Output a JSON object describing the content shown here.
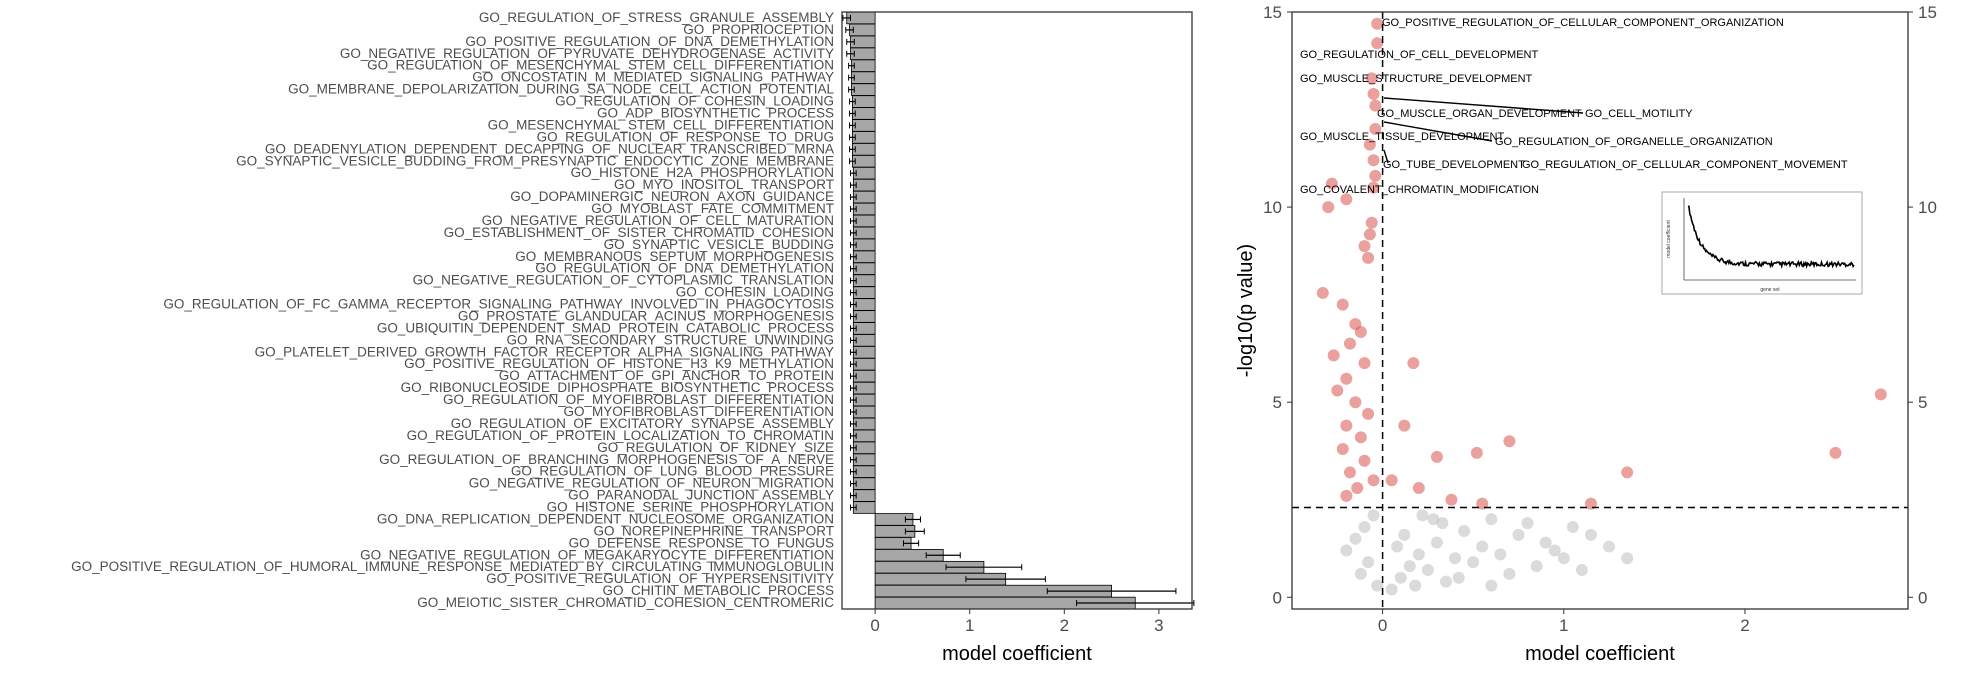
{
  "chart_data": [
    {
      "type": "bar",
      "orientation": "horizontal",
      "xlabel": "model coefficient",
      "ylabel": "",
      "xlim": [
        -0.35,
        3.35
      ],
      "xticks": [
        0,
        1,
        2,
        3
      ],
      "grid": false,
      "bar_color": "#a6a6a6",
      "categories": [
        "GO_REGULATION_OF_STRESS_GRANULE_ASSEMBLY",
        "GO_PROPRIOCEPTION",
        "GO_POSITIVE_REGULATION_OF_DNA_DEMETHYLATION",
        "GO_NEGATIVE_REGULATION_OF_PYRUVATE_DEHYDROGENASE_ACTIVITY",
        "GO_REGULATION_OF_MESENCHYMAL_STEM_CELL_DIFFERENTIATION",
        "GO_ONCOSTATIN_M_MEDIATED_SIGNALING_PATHWAY",
        "GO_MEMBRANE_DEPOLARIZATION_DURING_SA_NODE_CELL_ACTION_POTENTIAL",
        "GO_REGULATION_OF_COHESIN_LOADING",
        "GO_ADP_BIOSYNTHETIC_PROCESS",
        "GO_MESENCHYMAL_STEM_CELL_DIFFERENTIATION",
        "GO_REGULATION_OF_RESPONSE_TO_DRUG",
        "GO_DEADENYLATION_DEPENDENT_DECAPPING_OF_NUCLEAR_TRANSCRIBED_MRNA",
        "GO_SYNAPTIC_VESICLE_BUDDING_FROM_PRESYNAPTIC_ENDOCYTIC_ZONE_MEMBRANE",
        "GO_HISTONE_H2A_PHOSPHORYLATION",
        "GO_MYO_INOSITOL_TRANSPORT",
        "GO_DOPAMINERGIC_NEURON_AXON_GUIDANCE",
        "GO_MYOBLAST_FATE_COMMITMENT",
        "GO_NEGATIVE_REGULATION_OF_CELL_MATURATION",
        "GO_ESTABLISHMENT_OF_SISTER_CHROMATID_COHESION",
        "GO_SYNAPTIC_VESICLE_BUDDING",
        "GO_MEMBRANOUS_SEPTUM_MORPHOGENESIS",
        "GO_REGULATION_OF_DNA_DEMETHYLATION",
        "GO_NEGATIVE_REGULATION_OF_CYTOPLASMIC_TRANSLATION",
        "GO_COHESIN_LOADING",
        "GO_REGULATION_OF_FC_GAMMA_RECEPTOR_SIGNALING_PATHWAY_INVOLVED_IN_PHAGOCYTOSIS",
        "GO_PROSTATE_GLANDULAR_ACINUS_MORPHOGENESIS",
        "GO_UBIQUITIN_DEPENDENT_SMAD_PROTEIN_CATABOLIC_PROCESS",
        "GO_RNA_SECONDARY_STRUCTURE_UNWINDING",
        "GO_PLATELET_DERIVED_GROWTH_FACTOR_RECEPTOR_ALPHA_SIGNALING_PATHWAY",
        "GO_POSITIVE_REGULATION_OF_HISTONE_H3_K9_METHYLATION",
        "GO_ATTACHMENT_OF_GPI_ANCHOR_TO_PROTEIN",
        "GO_RIBONUCLEOSIDE_DIPHOSPHATE_BIOSYNTHETIC_PROCESS",
        "GO_REGULATION_OF_MYOFIBROBLAST_DIFFERENTIATION",
        "GO_MYOFIBROBLAST_DIFFERENTIATION",
        "GO_REGULATION_OF_EXCITATORY_SYNAPSE_ASSEMBLY",
        "GO_REGULATION_OF_PROTEIN_LOCALIZATION_TO_CHROMATIN",
        "GO_REGULATION_OF_KIDNEY_SIZE",
        "GO_REGULATION_OF_BRANCHING_MORPHOGENESIS_OF_A_NERVE",
        "GO_REGULATION_OF_LUNG_BLOOD_PRESSURE",
        "GO_NEGATIVE_REGULATION_OF_NEURON_MIGRATION",
        "GO_PARANODAL_JUNCTION_ASSEMBLY",
        "GO_HISTONE_SERINE_PHOSPHORYLATION",
        "GO_DNA_REPLICATION_DEPENDENT_NUCLEOSOME_ORGANIZATION",
        "GO_NOREPINEPHRINE_TRANSPORT",
        "GO_DEFENSE_RESPONSE_TO_FUNGUS",
        "GO_NEGATIVE_REGULATION_OF_MEGAKARYOCYTE_DIFFERENTIATION",
        "GO_POSITIVE_REGULATION_OF_HUMORAL_IMMUNE_RESPONSE_MEDIATED_BY_CIRCULATING_IMMUNOGLOBULIN",
        "GO_POSITIVE_REGULATION_OF_HYPERSENSITIVITY",
        "GO_CHITIN_METABOLIC_PROCESS",
        "GO_MEIOTIC_SISTER_CHROMATID_COHESION_CENTROMERIC"
      ],
      "values": [
        -0.3,
        -0.27,
        -0.26,
        -0.26,
        -0.25,
        -0.25,
        -0.25,
        -0.24,
        -0.24,
        -0.24,
        -0.24,
        -0.24,
        -0.24,
        -0.23,
        -0.23,
        -0.23,
        -0.23,
        -0.23,
        -0.23,
        -0.23,
        -0.23,
        -0.23,
        -0.23,
        -0.23,
        -0.23,
        -0.23,
        -0.23,
        -0.23,
        -0.23,
        -0.23,
        -0.23,
        -0.23,
        -0.23,
        -0.23,
        -0.23,
        -0.23,
        -0.23,
        -0.23,
        -0.23,
        -0.23,
        -0.23,
        -0.23,
        0.4,
        0.42,
        0.38,
        0.72,
        1.15,
        1.38,
        2.5,
        2.75
      ],
      "errors": [
        0.04,
        0.04,
        0.04,
        0.04,
        0.03,
        0.03,
        0.03,
        0.03,
        0.03,
        0.03,
        0.03,
        0.03,
        0.03,
        0.03,
        0.03,
        0.03,
        0.03,
        0.03,
        0.03,
        0.03,
        0.03,
        0.03,
        0.03,
        0.03,
        0.03,
        0.03,
        0.03,
        0.03,
        0.03,
        0.03,
        0.03,
        0.03,
        0.03,
        0.03,
        0.03,
        0.03,
        0.03,
        0.03,
        0.03,
        0.03,
        0.03,
        0.03,
        0.08,
        0.1,
        0.08,
        0.18,
        0.4,
        0.42,
        0.68,
        0.62
      ]
    },
    {
      "type": "scatter",
      "xlabel": "model coefficient",
      "ylabel": "-log10(p value)",
      "xlim": [
        -0.5,
        2.9
      ],
      "ylim": [
        -0.3,
        15
      ],
      "xticks": [
        0,
        1,
        2
      ],
      "yticks": [
        0,
        5,
        10,
        15
      ],
      "right_axis_ticks": [
        0,
        5,
        10,
        15
      ],
      "grid": false,
      "threshold_x": 0,
      "threshold_y": 2.3,
      "significant_color": "#d9534f",
      "nonsignificant_color": "#bdbdbd",
      "significant_points": [
        [
          -0.03,
          14.7
        ],
        [
          -0.03,
          14.2
        ],
        [
          -0.06,
          13.3
        ],
        [
          -0.05,
          12.9
        ],
        [
          -0.04,
          12.6
        ],
        [
          -0.04,
          12.0
        ],
        [
          -0.07,
          11.6
        ],
        [
          -0.05,
          11.2
        ],
        [
          -0.04,
          10.8
        ],
        [
          -0.05,
          10.5
        ],
        [
          -0.28,
          10.6
        ],
        [
          -0.2,
          10.2
        ],
        [
          -0.3,
          10.0
        ],
        [
          -0.06,
          9.6
        ],
        [
          -0.07,
          9.3
        ],
        [
          -0.1,
          9.0
        ],
        [
          -0.08,
          8.7
        ],
        [
          -0.33,
          7.8
        ],
        [
          -0.22,
          7.5
        ],
        [
          -0.15,
          7.0
        ],
        [
          -0.12,
          6.8
        ],
        [
          -0.18,
          6.5
        ],
        [
          -0.27,
          6.2
        ],
        [
          -0.1,
          6.0
        ],
        [
          -0.2,
          5.6
        ],
        [
          -0.25,
          5.3
        ],
        [
          -0.15,
          5.0
        ],
        [
          -0.08,
          4.7
        ],
        [
          -0.2,
          4.4
        ],
        [
          -0.12,
          4.1
        ],
        [
          -0.22,
          3.8
        ],
        [
          -0.1,
          3.5
        ],
        [
          -0.18,
          3.2
        ],
        [
          -0.05,
          3.0
        ],
        [
          -0.14,
          2.8
        ],
        [
          -0.2,
          2.6
        ],
        [
          0.17,
          6.0
        ],
        [
          0.12,
          4.4
        ],
        [
          0.3,
          3.6
        ],
        [
          0.52,
          3.7
        ],
        [
          0.7,
          4.0
        ],
        [
          0.05,
          3.0
        ],
        [
          0.2,
          2.8
        ],
        [
          0.38,
          2.5
        ],
        [
          0.55,
          2.4
        ],
        [
          1.15,
          2.4
        ],
        [
          1.35,
          3.2
        ],
        [
          2.5,
          3.7
        ],
        [
          2.75,
          5.2
        ]
      ],
      "nonsignificant_points": [
        [
          -0.05,
          2.1
        ],
        [
          -0.1,
          1.8
        ],
        [
          -0.15,
          1.5
        ],
        [
          -0.2,
          1.2
        ],
        [
          -0.08,
          0.9
        ],
        [
          -0.12,
          0.6
        ],
        [
          -0.03,
          0.3
        ],
        [
          0.05,
          0.2
        ],
        [
          0.1,
          0.5
        ],
        [
          0.15,
          0.8
        ],
        [
          0.2,
          1.1
        ],
        [
          0.25,
          0.7
        ],
        [
          0.3,
          1.4
        ],
        [
          0.35,
          0.4
        ],
        [
          0.4,
          1.0
        ],
        [
          0.45,
          1.7
        ],
        [
          0.5,
          0.9
        ],
        [
          0.55,
          1.3
        ],
        [
          0.6,
          2.0
        ],
        [
          0.65,
          1.1
        ],
        [
          0.7,
          0.6
        ],
        [
          0.75,
          1.6
        ],
        [
          0.8,
          1.9
        ],
        [
          0.85,
          0.8
        ],
        [
          0.9,
          1.4
        ],
        [
          0.95,
          1.2
        ],
        [
          1.0,
          1.0
        ],
        [
          1.05,
          1.8
        ],
        [
          1.1,
          0.7
        ],
        [
          1.15,
          1.6
        ],
        [
          1.25,
          1.3
        ],
        [
          1.35,
          1.0
        ],
        [
          0.22,
          2.1
        ],
        [
          0.33,
          1.9
        ],
        [
          0.12,
          1.6
        ],
        [
          0.42,
          0.5
        ],
        [
          0.6,
          0.3
        ],
        [
          0.08,
          1.3
        ],
        [
          0.18,
          0.3
        ],
        [
          0.28,
          2.0
        ]
      ],
      "annotations": [
        "GO_POSITIVE_REGULATION_OF_CELLULAR_COMPONENT_ORGANIZATION",
        "GO_REGULATION_OF_CELL_DEVELOPMENT",
        "GO_MUSCLE_STRUCTURE_DEVELOPMENT",
        "GO_CELL_MOTILITY",
        "GO_MUSCLE_ORGAN_DEVELOPMENT",
        "GO_MUSCLE_TISSUE_DEVELOPMENT",
        "GO_REGULATION_OF_ORGANELLE_ORGANIZATION",
        "GO_TUBE_DEVELOPMENT",
        "GO_REGULATION_OF_CELLULAR_COMPONENT_MOVEMENT",
        "GO_COVALENT_CHROMATIN_MODIFICATION"
      ],
      "inset": {
        "type": "line",
        "xlabel": "gene set",
        "ylabel": "model coefficient"
      }
    }
  ]
}
